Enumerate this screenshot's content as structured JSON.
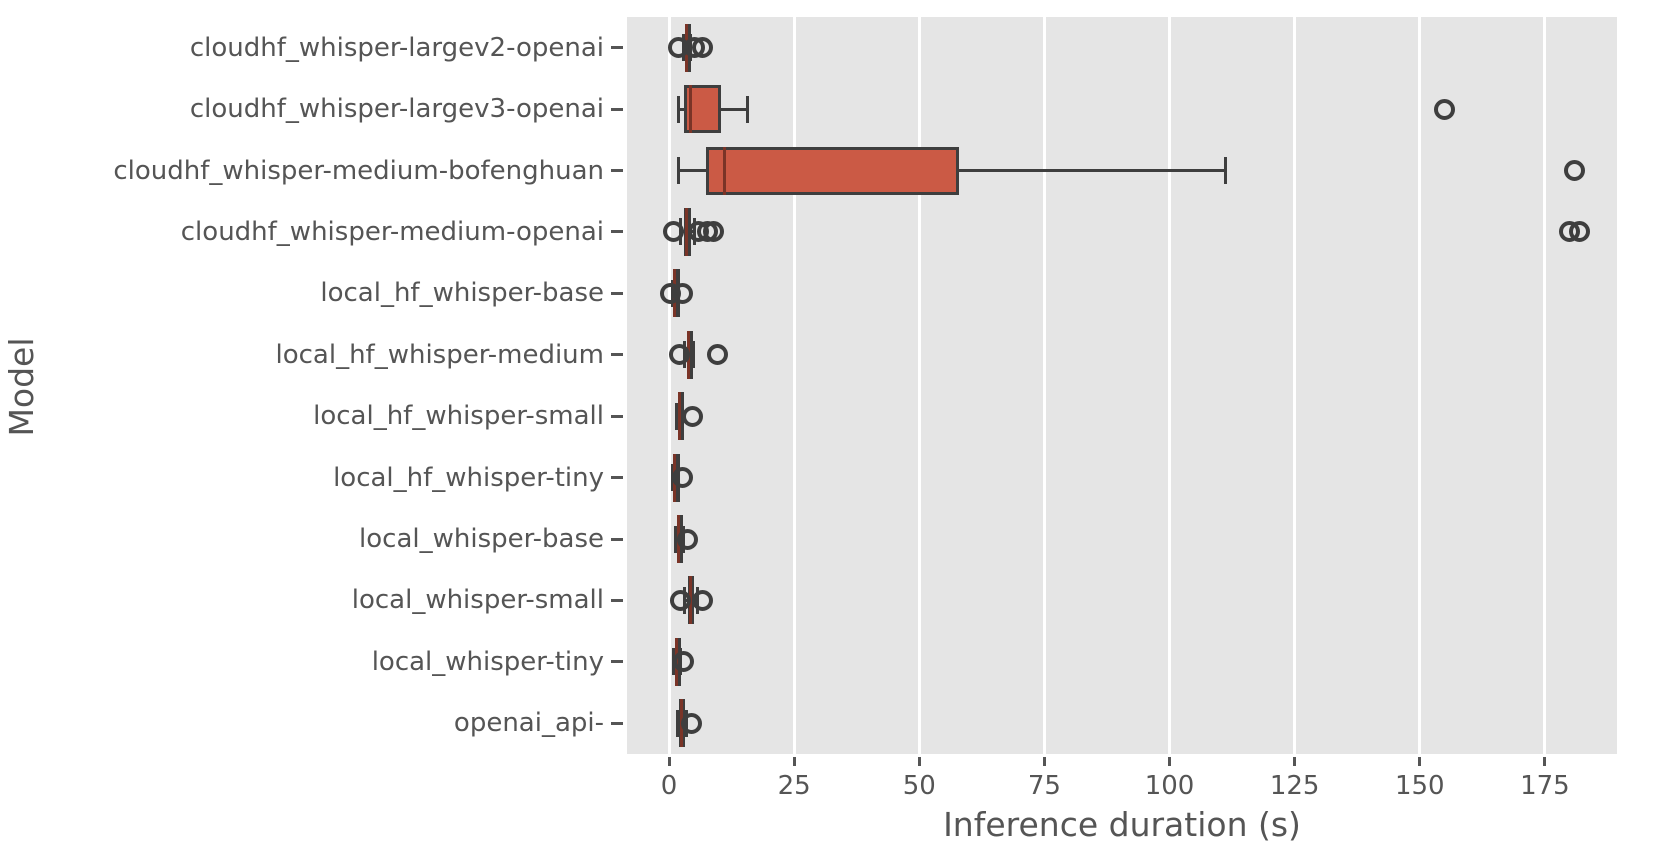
{
  "figure": {
    "xlabel": "Inference duration (s)",
    "ylabel": "Model"
  },
  "chart_data": {
    "type": "boxplot",
    "orientation": "horizontal",
    "title": "",
    "xlabel": "Inference duration (s)",
    "ylabel": "Model",
    "xlim": [
      -8.4,
      189.4
    ],
    "xticks": [
      0,
      25,
      50,
      75,
      100,
      125,
      150,
      175
    ],
    "grid": "vertical-only",
    "legend_position": "none",
    "units": "seconds",
    "categories": [
      "cloudhf_whisper-largev2-openai",
      "cloudhf_whisper-largev3-openai",
      "cloudhf_whisper-medium-bofenghuan",
      "cloudhf_whisper-medium-openai",
      "local_hf_whisper-base",
      "local_hf_whisper-medium",
      "local_hf_whisper-small",
      "local_hf_whisper-tiny",
      "local_whisper-base",
      "local_whisper-small",
      "local_whisper-tiny",
      "openai_api-"
    ],
    "series": [
      {
        "label": "cloudhf_whisper-largev2-openai",
        "whislo": 2.9,
        "q1": 3.2,
        "med": 3.5,
        "q3": 3.9,
        "whishi": 4.3,
        "fliers": [
          1.9,
          5.0,
          6.6
        ]
      },
      {
        "label": "cloudhf_whisper-largev3-openai",
        "whislo": 1.8,
        "q1": 3.0,
        "med": 4.2,
        "q3": 10.3,
        "whishi": 15.6,
        "fliers": [
          155
        ]
      },
      {
        "label": "cloudhf_whisper-medium-bofenghuan",
        "whislo": 1.9,
        "q1": 7.3,
        "med": 11.1,
        "q3": 58.0,
        "whishi": 111.2,
        "fliers": [
          181
        ]
      },
      {
        "label": "cloudhf_whisper-medium-openai",
        "whislo": 2.3,
        "q1": 2.9,
        "med": 3.5,
        "q3": 4.3,
        "whishi": 5.0,
        "fliers": [
          0.8,
          5.8,
          7.7,
          8.8,
          180,
          182
        ]
      },
      {
        "label": "local_hf_whisper-base",
        "whislo": 0.7,
        "q1": 0.9,
        "med": 1.1,
        "q3": 1.4,
        "whishi": 1.8,
        "fliers": [
          0.2,
          2.6
        ]
      },
      {
        "label": "local_hf_whisper-medium",
        "whislo": 3.0,
        "q1": 3.6,
        "med": 3.9,
        "q3": 4.3,
        "whishi": 4.8,
        "fliers": [
          2.0,
          9.6
        ]
      },
      {
        "label": "local_hf_whisper-small",
        "whislo": 1.5,
        "q1": 1.8,
        "med": 2.0,
        "q3": 2.3,
        "whishi": 2.7,
        "fliers": [
          4.6
        ]
      },
      {
        "label": "local_hf_whisper-tiny",
        "whislo": 0.6,
        "q1": 0.9,
        "med": 1.1,
        "q3": 1.3,
        "whishi": 1.6,
        "fliers": [
          2.6
        ]
      },
      {
        "label": "local_whisper-base",
        "whislo": 1.2,
        "q1": 1.5,
        "med": 1.8,
        "q3": 2.3,
        "whishi": 2.9,
        "fliers": [
          3.6
        ]
      },
      {
        "label": "local_whisper-small",
        "whislo": 3.0,
        "q1": 3.8,
        "med": 4.3,
        "q3": 4.9,
        "whishi": 5.6,
        "fliers": [
          2.3,
          6.7
        ]
      },
      {
        "label": "local_whisper-tiny",
        "whislo": 0.9,
        "q1": 1.2,
        "med": 1.5,
        "q3": 1.8,
        "whishi": 2.3,
        "fliers": [
          2.8
        ]
      },
      {
        "label": "openai_api-",
        "whislo": 1.6,
        "q1": 2.0,
        "med": 2.4,
        "q3": 2.9,
        "whishi": 3.4,
        "fliers": [
          4.4
        ]
      }
    ],
    "colors": {
      "box_fill": "#cb5a45",
      "median": "#7a3427",
      "line": "#3e3e3e",
      "plot_background": "#e5e5e5",
      "gridline": "#ffffff",
      "figure_background": "#ffffff",
      "text": "#555555"
    }
  }
}
